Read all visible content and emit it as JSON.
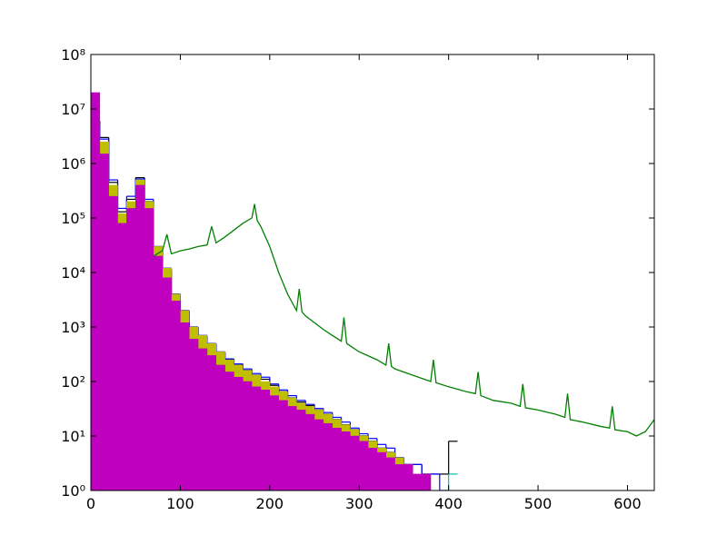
{
  "chart_data": {
    "type": "histogram",
    "log_y": true,
    "xlim": [
      0,
      630
    ],
    "ylim": [
      1,
      100000000
    ],
    "xticks": [
      0,
      100,
      200,
      300,
      400,
      500,
      600
    ],
    "yticks": [
      {
        "value": 1,
        "label": "10⁰"
      },
      {
        "value": 10,
        "label": "10¹"
      },
      {
        "value": 100,
        "label": "10²"
      },
      {
        "value": 1000,
        "label": "10³"
      },
      {
        "value": 10000,
        "label": "10⁴"
      },
      {
        "value": 100000,
        "label": "10⁵"
      },
      {
        "value": 1000000,
        "label": "10⁶"
      },
      {
        "value": 10000000,
        "label": "10⁷"
      },
      {
        "value": 100000000,
        "label": "10⁸"
      }
    ],
    "bins": [
      0,
      10,
      20,
      30,
      40,
      50,
      60,
      70,
      80,
      90,
      100,
      110,
      120,
      130,
      140,
      150,
      160,
      170,
      180,
      190,
      200,
      210,
      220,
      230,
      240,
      250,
      260,
      270,
      280,
      290,
      300,
      310,
      320,
      330,
      340,
      350,
      360,
      370,
      380,
      390,
      400,
      410
    ],
    "series": [
      {
        "color": "#000000",
        "histtype": "step",
        "values": [
          6000000,
          3000000,
          450000,
          130000,
          220000,
          550000,
          200000,
          28000,
          11000,
          4000,
          2000,
          1000,
          650,
          480,
          340,
          250,
          200,
          160,
          130,
          110,
          85,
          65,
          50,
          42,
          36,
          30,
          25,
          20,
          16,
          13,
          10,
          8,
          6,
          5,
          4,
          3,
          3,
          2,
          2,
          2,
          8
        ]
      },
      {
        "color": "#0000ff",
        "histtype": "step",
        "values": [
          5000000,
          2800000,
          500000,
          150000,
          250000,
          520000,
          220000,
          30000,
          12000,
          4000,
          2000,
          1000,
          700,
          500,
          350,
          260,
          210,
          170,
          140,
          120,
          90,
          70,
          55,
          45,
          38,
          32,
          27,
          22,
          18,
          14,
          11,
          9,
          7,
          6,
          4,
          3,
          3,
          2,
          2,
          1,
          null
        ]
      },
      {
        "color": "#bfbf00",
        "histtype": "stepfilled",
        "values": [
          5000000,
          2500000,
          400000,
          120000,
          200000,
          500000,
          200000,
          30000,
          12000,
          4000,
          2000,
          1000,
          700,
          500,
          350,
          250,
          200,
          160,
          130,
          100,
          80,
          65,
          50,
          40,
          35,
          30,
          25,
          20,
          16,
          13,
          10,
          8,
          6,
          5,
          4,
          3,
          2,
          2,
          null,
          null,
          null
        ]
      },
      {
        "color": "#bf00bf",
        "histtype": "stepfilled",
        "values": [
          20000000,
          1500000,
          250000,
          80000,
          150000,
          400000,
          150000,
          20000,
          8000,
          3000,
          1200,
          600,
          400,
          300,
          200,
          150,
          120,
          100,
          80,
          70,
          55,
          45,
          35,
          30,
          25,
          20,
          17,
          14,
          12,
          10,
          8,
          6,
          5,
          4,
          3,
          3,
          2,
          2,
          null,
          null,
          null
        ]
      },
      {
        "color": "#00bfbf",
        "histtype": "step",
        "values": [
          null,
          null,
          null,
          null,
          null,
          null,
          null,
          null,
          null,
          null,
          null,
          null,
          null,
          null,
          null,
          null,
          null,
          null,
          null,
          null,
          null,
          null,
          null,
          null,
          null,
          null,
          null,
          null,
          null,
          null,
          null,
          null,
          null,
          null,
          null,
          null,
          null,
          null,
          null,
          1,
          2
        ]
      }
    ],
    "line": {
      "color": "#008000",
      "x": [
        70,
        80,
        85,
        90,
        100,
        110,
        120,
        130,
        135,
        140,
        150,
        160,
        170,
        180,
        183,
        186,
        190,
        200,
        210,
        220,
        230,
        233,
        236,
        240,
        250,
        260,
        270,
        280,
        283,
        286,
        290,
        300,
        320,
        330,
        333,
        336,
        340,
        360,
        380,
        383,
        386,
        400,
        420,
        430,
        433,
        436,
        450,
        470,
        480,
        483,
        486,
        500,
        520,
        530,
        533,
        536,
        550,
        570,
        580,
        583,
        586,
        600,
        610,
        620,
        630
      ],
      "values": [
        20000,
        25000,
        50000,
        22000,
        25000,
        27000,
        30000,
        32000,
        70000,
        35000,
        45000,
        60000,
        80000,
        100000,
        180000,
        90000,
        70000,
        30000,
        10000,
        4000,
        2000,
        5000,
        1900,
        1600,
        1200,
        900,
        700,
        550,
        1500,
        500,
        450,
        350,
        250,
        200,
        500,
        190,
        170,
        130,
        100,
        250,
        95,
        80,
        65,
        60,
        150,
        55,
        45,
        40,
        35,
        90,
        33,
        30,
        25,
        22,
        60,
        20,
        18,
        15,
        14,
        35,
        13,
        12,
        10,
        12,
        20
      ]
    }
  }
}
